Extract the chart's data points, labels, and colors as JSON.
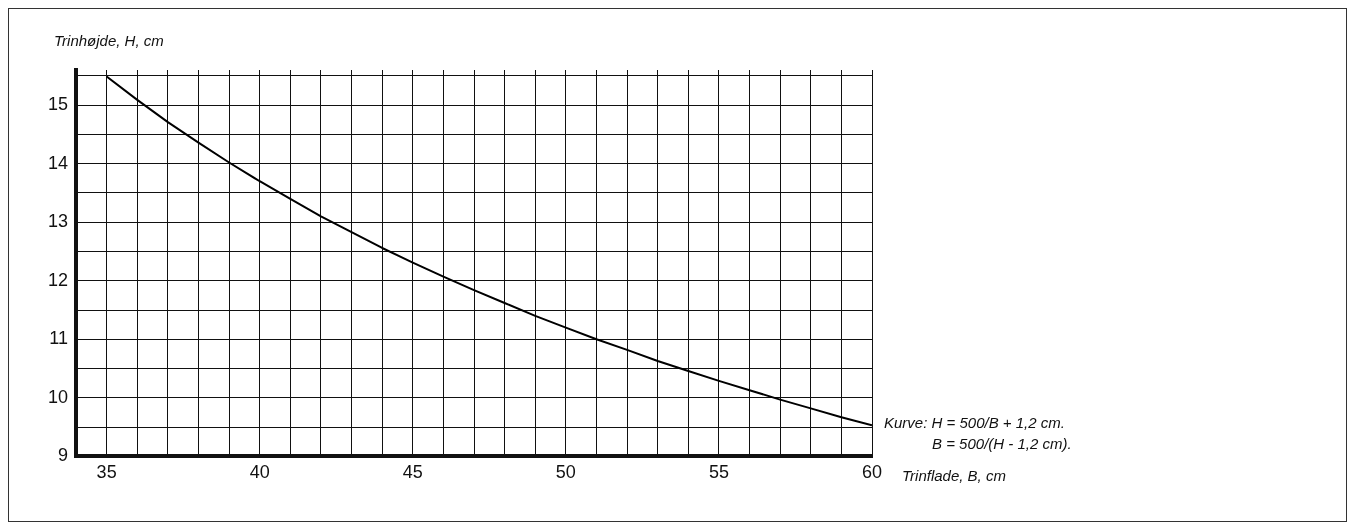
{
  "chart_data": {
    "type": "line",
    "xlabel": "Trinflade, B, cm",
    "ylabel": "Trinhøjde, H, cm",
    "x": [
      35,
      36,
      37,
      38,
      39,
      40,
      41,
      42,
      43,
      44,
      45,
      46,
      47,
      48,
      49,
      50,
      51,
      52,
      53,
      54,
      55,
      56,
      57,
      58,
      59,
      60
    ],
    "series": [
      {
        "color": "#000000",
        "values": [
          15.49,
          15.09,
          14.71,
          14.36,
          14.02,
          13.7,
          13.4,
          13.1,
          12.83,
          12.56,
          12.31,
          12.07,
          11.84,
          11.62,
          11.4,
          11.2,
          11.0,
          10.82,
          10.63,
          10.46,
          10.29,
          10.13,
          9.97,
          9.82,
          9.67,
          9.53
        ]
      }
    ],
    "xlim": [
      34,
      60
    ],
    "xticks": [
      {
        "value": 34,
        "label": null
      },
      35,
      {
        "value": 36,
        "label": null
      },
      {
        "value": 37,
        "label": null
      },
      {
        "value": 38,
        "label": null
      },
      {
        "value": 39,
        "label": null
      },
      40,
      {
        "value": 41,
        "label": null
      },
      {
        "value": 42,
        "label": null
      },
      {
        "value": 43,
        "label": null
      },
      {
        "value": 44,
        "label": null
      },
      45,
      {
        "value": 46,
        "label": null
      },
      {
        "value": 47,
        "label": null
      },
      {
        "value": 48,
        "label": null
      },
      {
        "value": 49,
        "label": null
      },
      50,
      {
        "value": 51,
        "label": null
      },
      {
        "value": 52,
        "label": null
      },
      {
        "value": 53,
        "label": null
      },
      {
        "value": 54,
        "label": null
      },
      55,
      {
        "value": 56,
        "label": null
      },
      {
        "value": 57,
        "label": null
      },
      {
        "value": 58,
        "label": null
      },
      {
        "value": 59,
        "label": null
      },
      60
    ],
    "ylim": [
      9,
      15.6
    ],
    "yticks": [
      9,
      {
        "value": 9.5,
        "label": null
      },
      10,
      {
        "value": 10.5,
        "label": null
      },
      11,
      {
        "value": 11.5,
        "label": null
      },
      12,
      {
        "value": 12.5,
        "label": null
      },
      13,
      {
        "value": 13.5,
        "label": null
      },
      14,
      {
        "value": 14.5,
        "label": null
      },
      15,
      {
        "value": 15.5,
        "label": null
      }
    ],
    "grid": true,
    "legend": false,
    "marker": "none",
    "line_style": "solid",
    "annotations": [
      "Kurve: H = 500/B + 1,2 cm.",
      "B = 500/(H - 1,2 cm)."
    ]
  }
}
